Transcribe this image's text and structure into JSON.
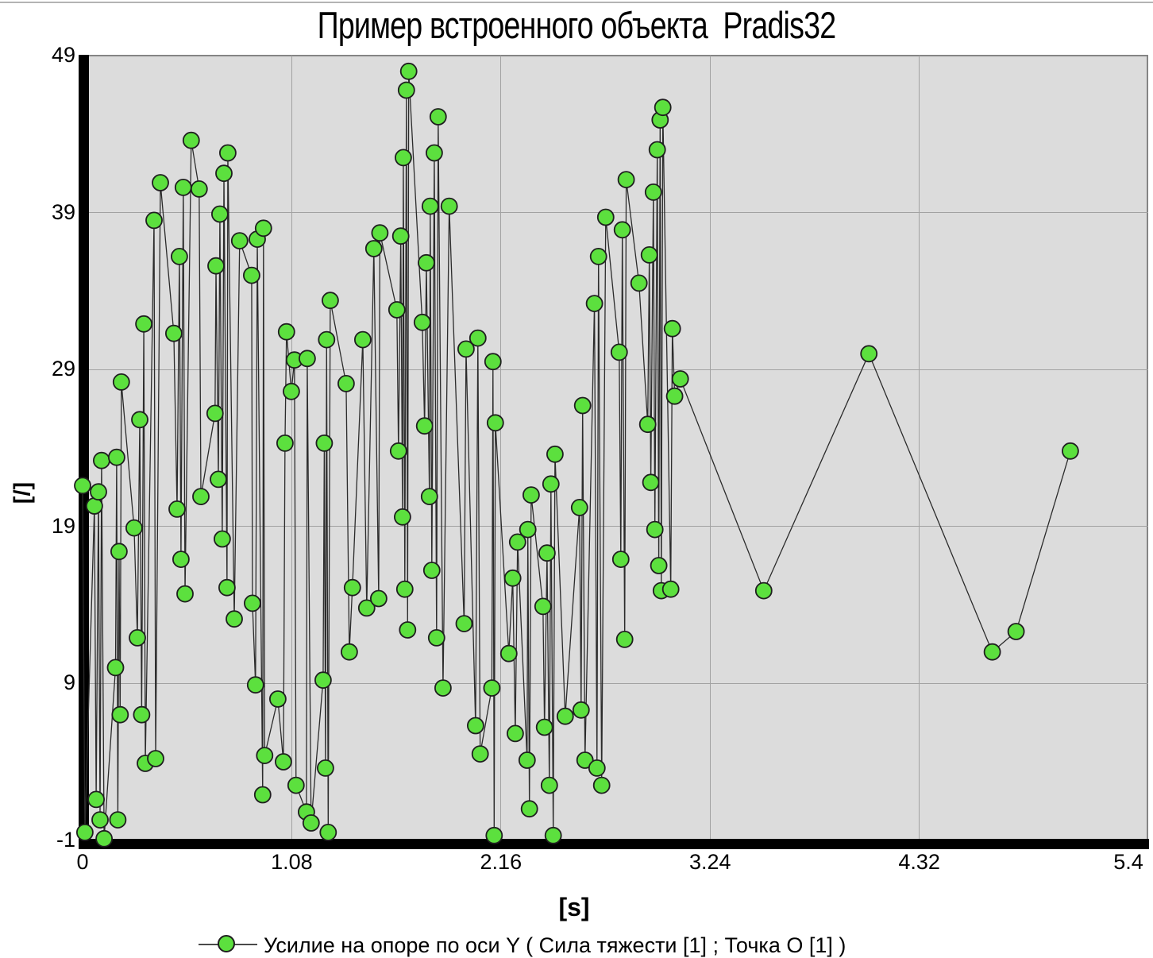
{
  "title": "Пример встроенного объекта  Pradis32",
  "colors": {
    "marker_fill": "#5ce03e",
    "marker_stroke": "#1f1f1f",
    "line": "#2b2b2b",
    "plot_bg": "#dcdcdc",
    "grid": "#a2a2a2",
    "axis": "#000000",
    "plot_border": "#858585"
  },
  "axes": {
    "x_label": "[s]",
    "y_label": "[/]"
  },
  "legend": {
    "label": "Усилие на опоре по оси Y ( Сила тяжести [1] ; Точка O [1] )"
  },
  "chart_data": {
    "type": "line",
    "title": "Пример встроенного объекта  Pradis32",
    "xlabel": "[s]",
    "ylabel": "[/]",
    "xlim": [
      0,
      5.4
    ],
    "ylim": [
      -1,
      49
    ],
    "x_ticks": [
      0,
      1.08,
      2.16,
      3.24,
      4.32,
      5.4
    ],
    "x_tick_labels": [
      "0",
      "1.08",
      "2.16",
      "3.24",
      "4.32",
      "5.4"
    ],
    "y_ticks": [
      -1,
      9,
      19,
      29,
      39,
      49
    ],
    "y_tick_labels": [
      "-1",
      "9",
      "19",
      "29",
      "39",
      "49"
    ],
    "grid": true,
    "legend_position": "bottom",
    "series": [
      {
        "name": "Усилие на опоре по оси Y ( Сила тяжести [1] ; Точка O [1] )",
        "marker": "circle",
        "points": [
          [
            0.0,
            21.6
          ],
          [
            0.012,
            -0.5
          ],
          [
            0.061,
            20.3
          ],
          [
            0.07,
            1.6
          ],
          [
            0.082,
            21.2
          ],
          [
            0.09,
            0.3
          ],
          [
            0.098,
            23.2
          ],
          [
            0.111,
            -0.9
          ],
          [
            0.17,
            10.0
          ],
          [
            0.176,
            23.4
          ],
          [
            0.182,
            0.3
          ],
          [
            0.188,
            17.4
          ],
          [
            0.194,
            7.0
          ],
          [
            0.2,
            28.2
          ],
          [
            0.266,
            18.9
          ],
          [
            0.283,
            11.9
          ],
          [
            0.295,
            25.8
          ],
          [
            0.305,
            7.0
          ],
          [
            0.316,
            31.9
          ],
          [
            0.324,
            3.9
          ],
          [
            0.369,
            38.5
          ],
          [
            0.377,
            4.2
          ],
          [
            0.402,
            40.9
          ],
          [
            0.471,
            31.3
          ],
          [
            0.488,
            20.1
          ],
          [
            0.5,
            36.2
          ],
          [
            0.508,
            16.9
          ],
          [
            0.52,
            40.6
          ],
          [
            0.529,
            14.7
          ],
          [
            0.561,
            43.6
          ],
          [
            0.602,
            40.5
          ],
          [
            0.611,
            20.9
          ],
          [
            0.684,
            26.2
          ],
          [
            0.689,
            35.6
          ],
          [
            0.701,
            22.0
          ],
          [
            0.709,
            38.9
          ],
          [
            0.721,
            18.2
          ],
          [
            0.73,
            41.5
          ],
          [
            0.746,
            15.1
          ],
          [
            0.75,
            42.8
          ],
          [
            0.783,
            13.1
          ],
          [
            0.811,
            37.2
          ],
          [
            0.873,
            35.0
          ],
          [
            0.877,
            14.1
          ],
          [
            0.893,
            8.9
          ],
          [
            0.902,
            37.3
          ],
          [
            0.93,
            1.9
          ],
          [
            0.934,
            38.0
          ],
          [
            0.94,
            4.4
          ],
          [
            1.008,
            8.0
          ],
          [
            1.037,
            4.0
          ],
          [
            1.045,
            24.3
          ],
          [
            1.053,
            31.4
          ],
          [
            1.078,
            27.6
          ],
          [
            1.094,
            29.6
          ],
          [
            1.102,
            2.5
          ],
          [
            1.156,
            0.8
          ],
          [
            1.16,
            29.7
          ],
          [
            1.18,
            0.1
          ],
          [
            1.242,
            9.2
          ],
          [
            1.248,
            24.3
          ],
          [
            1.254,
            3.6
          ],
          [
            1.26,
            30.9
          ],
          [
            1.268,
            -0.5
          ],
          [
            1.279,
            33.4
          ],
          [
            1.361,
            28.1
          ],
          [
            1.377,
            11.0
          ],
          [
            1.393,
            15.1
          ],
          [
            1.447,
            30.9
          ],
          [
            1.467,
            13.8
          ],
          [
            1.504,
            36.7
          ],
          [
            1.529,
            14.4
          ],
          [
            1.535,
            37.7
          ],
          [
            1.623,
            32.8
          ],
          [
            1.631,
            23.8
          ],
          [
            1.643,
            37.5
          ],
          [
            1.652,
            19.6
          ],
          [
            1.656,
            42.5
          ],
          [
            1.664,
            15.0
          ],
          [
            1.672,
            46.8
          ],
          [
            1.678,
            12.4
          ],
          [
            1.684,
            48.0
          ],
          [
            1.754,
            32.0
          ],
          [
            1.766,
            25.4
          ],
          [
            1.775,
            35.8
          ],
          [
            1.791,
            20.9
          ],
          [
            1.795,
            39.4
          ],
          [
            1.803,
            16.2
          ],
          [
            1.816,
            42.8
          ],
          [
            1.828,
            11.9
          ],
          [
            1.836,
            45.1
          ],
          [
            1.861,
            8.7
          ],
          [
            1.893,
            39.4
          ],
          [
            1.97,
            12.8
          ],
          [
            1.98,
            30.3
          ],
          [
            2.029,
            6.3
          ],
          [
            2.041,
            31.0
          ],
          [
            2.053,
            4.5
          ],
          [
            2.113,
            8.7
          ],
          [
            2.119,
            29.5
          ],
          [
            2.125,
            -0.7
          ],
          [
            2.131,
            25.6
          ],
          [
            2.201,
            10.9
          ],
          [
            2.221,
            15.7
          ],
          [
            2.234,
            5.8
          ],
          [
            2.246,
            18.0
          ],
          [
            2.295,
            4.1
          ],
          [
            2.299,
            18.8
          ],
          [
            2.307,
            1.0
          ],
          [
            2.316,
            21.0
          ],
          [
            2.377,
            13.9
          ],
          [
            2.385,
            6.2
          ],
          [
            2.398,
            17.3
          ],
          [
            2.41,
            2.5
          ],
          [
            2.418,
            21.7
          ],
          [
            2.43,
            -0.7
          ],
          [
            2.439,
            23.6
          ],
          [
            2.492,
            6.9
          ],
          [
            2.566,
            20.2
          ],
          [
            2.574,
            7.3
          ],
          [
            2.582,
            26.7
          ],
          [
            2.594,
            4.1
          ],
          [
            2.643,
            33.2
          ],
          [
            2.656,
            3.6
          ],
          [
            2.664,
            36.2
          ],
          [
            2.68,
            2.5
          ],
          [
            2.701,
            38.7
          ],
          [
            2.771,
            30.1
          ],
          [
            2.779,
            16.9
          ],
          [
            2.787,
            37.9
          ],
          [
            2.799,
            11.8
          ],
          [
            2.807,
            41.1
          ],
          [
            2.873,
            34.5
          ],
          [
            2.918,
            25.5
          ],
          [
            2.926,
            36.3
          ],
          [
            2.934,
            21.8
          ],
          [
            2.947,
            40.3
          ],
          [
            2.955,
            18.8
          ],
          [
            2.967,
            43.0
          ],
          [
            2.975,
            16.5
          ],
          [
            2.982,
            44.9
          ],
          [
            2.988,
            14.9
          ],
          [
            2.996,
            45.7
          ],
          [
            3.037,
            15.0
          ],
          [
            3.045,
            31.6
          ],
          [
            3.057,
            27.3
          ],
          [
            3.086,
            28.4
          ],
          [
            3.517,
            14.9
          ],
          [
            4.06,
            30.0
          ],
          [
            4.697,
            11.0
          ],
          [
            4.82,
            12.3
          ],
          [
            5.1,
            23.8
          ]
        ]
      }
    ]
  }
}
